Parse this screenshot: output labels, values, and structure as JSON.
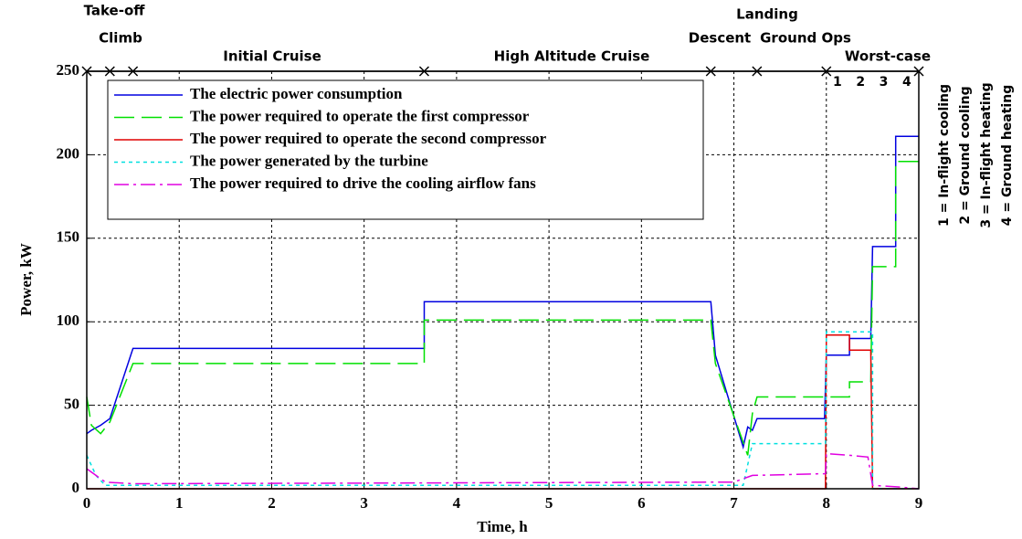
{
  "chart_data": {
    "type": "line",
    "xlabel": "Time, h",
    "ylabel": "Power, kW",
    "xlim": [
      0,
      9
    ],
    "ylim": [
      0,
      250
    ],
    "xticks": [
      0,
      1,
      2,
      3,
      4,
      5,
      6,
      7,
      8,
      9
    ],
    "yticks": [
      0,
      50,
      100,
      150,
      200,
      250
    ],
    "grid": true,
    "phases": [
      "Take-off",
      "Climb",
      "Initial Cruise",
      "High Altitude Cruise",
      "Descent",
      "Landing",
      "Ground Ops",
      "Worst-case"
    ],
    "phase_boundaries": [
      0,
      0.25,
      0.5,
      3.65,
      6.75,
      7.25,
      8,
      9
    ],
    "cases": [
      "1",
      "2",
      "3",
      "4"
    ],
    "case_legend": [
      "1 = In-flight cooling",
      "2 = Ground cooling",
      "3 = In-flight heating",
      "4 = Ground heating"
    ],
    "series": [
      {
        "name": "The electric power consumption",
        "color": "#0000e0",
        "dash": "none",
        "x": [
          0,
          0.05,
          0.15,
          0.25,
          0.5,
          3.65,
          3.65,
          6.75,
          6.8,
          7.1,
          7.15,
          7.2,
          7.25,
          7.98,
          8,
          8.25,
          8.25,
          8.48,
          8.5,
          8.75,
          8.75,
          9
        ],
        "values": [
          33,
          35,
          38,
          42,
          84,
          84,
          112,
          112,
          80,
          25,
          37,
          35,
          42,
          42,
          80,
          80,
          90,
          90,
          145,
          145,
          211,
          211
        ]
      },
      {
        "name": "The power required to operate the first compressor",
        "color": "#00e000",
        "dash": "22,8",
        "x": [
          0,
          0.05,
          0.15,
          0.25,
          0.5,
          3.65,
          3.65,
          6.75,
          6.8,
          7.15,
          7.2,
          7.25,
          8.25,
          8.25,
          8.48,
          8.5,
          8.75,
          8.75,
          9
        ],
        "values": [
          55,
          38,
          33,
          40,
          75,
          75,
          101,
          101,
          75,
          20,
          45,
          55,
          55,
          64,
          64,
          133,
          133,
          196,
          196
        ]
      },
      {
        "name": "The power required to operate the second compressor",
        "color": "#e00000",
        "dash": "none",
        "x": [
          0,
          7.99,
          8,
          8.25,
          8.25,
          8.48,
          8.5,
          9
        ],
        "values": [
          0,
          0,
          92,
          92,
          83,
          83,
          0,
          0
        ]
      },
      {
        "name": "The power generated by the turbine",
        "color": "#00e0e0",
        "dash": "4,4",
        "x": [
          0,
          0.1,
          0.2,
          7.1,
          7.2,
          7.99,
          8,
          8.5,
          8.5,
          9
        ],
        "values": [
          20,
          8,
          2,
          2,
          27,
          27,
          94,
          94,
          0,
          0
        ]
      },
      {
        "name": "The power required to drive the cooling airflow fans",
        "color": "#e000e0",
        "dash": "16,5,3,5",
        "x": [
          0,
          0.1,
          0.2,
          0.5,
          7,
          7.2,
          7.99,
          8,
          8.25,
          8.45,
          8.5,
          8.8,
          9
        ],
        "values": [
          12,
          8,
          4,
          3,
          4,
          8,
          9,
          21,
          20,
          19,
          2,
          1,
          0
        ]
      }
    ]
  }
}
